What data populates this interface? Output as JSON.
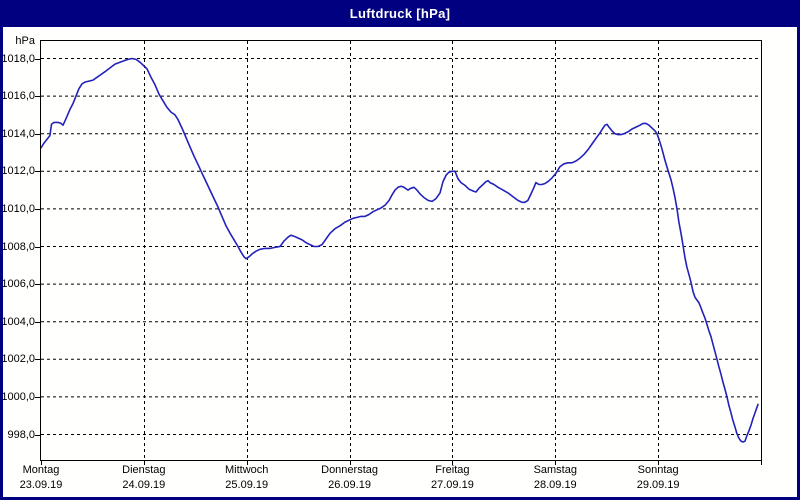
{
  "title_bar": {
    "title": "Luftdruck [hPa]",
    "bg_color": "#000080",
    "text_color": "#ffffff"
  },
  "chart_data": {
    "type": "line",
    "title": "Luftdruck [hPa]",
    "ylabel": "hPa",
    "xlabel": "",
    "grid": "dashed",
    "legend": "none",
    "line_color": "#2222bb",
    "ylim": [
      996.7,
      1019.0
    ],
    "y_tick_values": [
      1018,
      1016,
      1014,
      1012,
      1010,
      1008,
      1006,
      1004,
      1002,
      1000,
      998
    ],
    "y_tick_labels": [
      "1018,0",
      "1016,0",
      "1014,0",
      "1012,0",
      "1010,0",
      "1008,0",
      "1006,0",
      "1004,0",
      "1002,0",
      "1000,0",
      "998,0"
    ],
    "x_days": [
      {
        "day": "Montag",
        "date": "23.09.19"
      },
      {
        "day": "Dienstag",
        "date": "24.09.19"
      },
      {
        "day": "Mittwoch",
        "date": "25.09.19"
      },
      {
        "day": "Donnerstag",
        "date": "26.09.19"
      },
      {
        "day": "Freitag",
        "date": "27.09.19"
      },
      {
        "day": "Samstag",
        "date": "28.09.19"
      },
      {
        "day": "Sonntag",
        "date": "29.09.19"
      }
    ],
    "series": [
      {
        "name": "Luftdruck",
        "unit": "hPa",
        "x_unit": "days_since_monday_2019-09-23",
        "points": [
          [
            0.0,
            1013.25
          ],
          [
            0.029,
            1013.5
          ],
          [
            0.058,
            1013.7
          ],
          [
            0.087,
            1013.9
          ],
          [
            0.102,
            1014.5
          ],
          [
            0.126,
            1014.6
          ],
          [
            0.165,
            1014.6
          ],
          [
            0.194,
            1014.55
          ],
          [
            0.214,
            1014.45
          ],
          [
            0.243,
            1014.8
          ],
          [
            0.282,
            1015.3
          ],
          [
            0.311,
            1015.6
          ],
          [
            0.34,
            1016.0
          ],
          [
            0.369,
            1016.4
          ],
          [
            0.399,
            1016.65
          ],
          [
            0.428,
            1016.75
          ],
          [
            0.467,
            1016.8
          ],
          [
            0.506,
            1016.85
          ],
          [
            0.544,
            1017.0
          ],
          [
            0.583,
            1017.15
          ],
          [
            0.622,
            1017.3
          ],
          [
            0.671,
            1017.5
          ],
          [
            0.719,
            1017.7
          ],
          [
            0.768,
            1017.8
          ],
          [
            0.817,
            1017.9
          ],
          [
            0.846,
            1017.95
          ],
          [
            0.885,
            1018.0
          ],
          [
            0.924,
            1017.95
          ],
          [
            0.963,
            1017.8
          ],
          [
            0.992,
            1017.65
          ],
          [
            1.031,
            1017.45
          ],
          [
            1.069,
            1017.0
          ],
          [
            1.108,
            1016.6
          ],
          [
            1.147,
            1016.1
          ],
          [
            1.186,
            1015.75
          ],
          [
            1.225,
            1015.4
          ],
          [
            1.264,
            1015.15
          ],
          [
            1.303,
            1015.0
          ],
          [
            1.332,
            1014.75
          ],
          [
            1.371,
            1014.3
          ],
          [
            1.41,
            1013.8
          ],
          [
            1.449,
            1013.3
          ],
          [
            1.488,
            1012.8
          ],
          [
            1.527,
            1012.35
          ],
          [
            1.565,
            1011.9
          ],
          [
            1.604,
            1011.45
          ],
          [
            1.643,
            1011.0
          ],
          [
            1.682,
            1010.55
          ],
          [
            1.721,
            1010.1
          ],
          [
            1.76,
            1009.6
          ],
          [
            1.799,
            1009.1
          ],
          [
            1.838,
            1008.7
          ],
          [
            1.877,
            1008.35
          ],
          [
            1.915,
            1008.0
          ],
          [
            1.944,
            1007.7
          ],
          [
            1.974,
            1007.45
          ],
          [
            1.993,
            1007.35
          ],
          [
            2.022,
            1007.45
          ],
          [
            2.051,
            1007.6
          ],
          [
            2.09,
            1007.75
          ],
          [
            2.129,
            1007.85
          ],
          [
            2.178,
            1007.9
          ],
          [
            2.227,
            1007.9
          ],
          [
            2.275,
            1007.95
          ],
          [
            2.324,
            1008.0
          ],
          [
            2.363,
            1008.3
          ],
          [
            2.402,
            1008.5
          ],
          [
            2.431,
            1008.6
          ],
          [
            2.46,
            1008.55
          ],
          [
            2.499,
            1008.45
          ],
          [
            2.538,
            1008.35
          ],
          [
            2.577,
            1008.2
          ],
          [
            2.615,
            1008.1
          ],
          [
            2.654,
            1008.0
          ],
          [
            2.693,
            1008.0
          ],
          [
            2.732,
            1008.1
          ],
          [
            2.771,
            1008.4
          ],
          [
            2.81,
            1008.7
          ],
          [
            2.859,
            1008.95
          ],
          [
            2.907,
            1009.1
          ],
          [
            2.956,
            1009.3
          ],
          [
            2.995,
            1009.4
          ],
          [
            3.034,
            1009.5
          ],
          [
            3.073,
            1009.55
          ],
          [
            3.111,
            1009.6
          ],
          [
            3.15,
            1009.6
          ],
          [
            3.189,
            1009.7
          ],
          [
            3.228,
            1009.85
          ],
          [
            3.267,
            1009.95
          ],
          [
            3.306,
            1010.05
          ],
          [
            3.345,
            1010.2
          ],
          [
            3.384,
            1010.45
          ],
          [
            3.413,
            1010.75
          ],
          [
            3.442,
            1011.0
          ],
          [
            3.471,
            1011.15
          ],
          [
            3.5,
            1011.2
          ],
          [
            3.529,
            1011.15
          ],
          [
            3.568,
            1011.0
          ],
          [
            3.597,
            1011.1
          ],
          [
            3.626,
            1011.15
          ],
          [
            3.656,
            1011.0
          ],
          [
            3.685,
            1010.8
          ],
          [
            3.724,
            1010.6
          ],
          [
            3.763,
            1010.45
          ],
          [
            3.802,
            1010.4
          ],
          [
            3.84,
            1010.55
          ],
          [
            3.879,
            1010.85
          ],
          [
            3.908,
            1011.45
          ],
          [
            3.938,
            1011.8
          ],
          [
            3.967,
            1011.95
          ],
          [
            3.996,
            1012.0
          ],
          [
            4.025,
            1012.0
          ],
          [
            4.054,
            1011.6
          ],
          [
            4.083,
            1011.4
          ],
          [
            4.122,
            1011.25
          ],
          [
            4.161,
            1011.05
          ],
          [
            4.2,
            1010.95
          ],
          [
            4.229,
            1010.9
          ],
          [
            4.258,
            1011.1
          ],
          [
            4.297,
            1011.3
          ],
          [
            4.326,
            1011.45
          ],
          [
            4.346,
            1011.5
          ],
          [
            4.365,
            1011.4
          ],
          [
            4.404,
            1011.3
          ],
          [
            4.443,
            1011.15
          ],
          [
            4.492,
            1011.0
          ],
          [
            4.54,
            1010.85
          ],
          [
            4.589,
            1010.65
          ],
          [
            4.637,
            1010.45
          ],
          [
            4.676,
            1010.35
          ],
          [
            4.705,
            1010.35
          ],
          [
            4.734,
            1010.45
          ],
          [
            4.764,
            1010.8
          ],
          [
            4.793,
            1011.15
          ],
          [
            4.812,
            1011.4
          ],
          [
            4.841,
            1011.3
          ],
          [
            4.87,
            1011.3
          ],
          [
            4.9,
            1011.35
          ],
          [
            4.929,
            1011.45
          ],
          [
            4.968,
            1011.65
          ],
          [
            5.007,
            1011.9
          ],
          [
            5.046,
            1012.25
          ],
          [
            5.085,
            1012.4
          ],
          [
            5.124,
            1012.45
          ],
          [
            5.162,
            1012.45
          ],
          [
            5.201,
            1012.55
          ],
          [
            5.24,
            1012.7
          ],
          [
            5.279,
            1012.9
          ],
          [
            5.318,
            1013.15
          ],
          [
            5.357,
            1013.45
          ],
          [
            5.396,
            1013.75
          ],
          [
            5.435,
            1014.05
          ],
          [
            5.464,
            1014.3
          ],
          [
            5.483,
            1014.45
          ],
          [
            5.503,
            1014.5
          ],
          [
            5.522,
            1014.35
          ],
          [
            5.551,
            1014.15
          ],
          [
            5.58,
            1014.0
          ],
          [
            5.609,
            1013.95
          ],
          [
            5.639,
            1013.95
          ],
          [
            5.668,
            1014.0
          ],
          [
            5.707,
            1014.1
          ],
          [
            5.746,
            1014.25
          ],
          [
            5.785,
            1014.35
          ],
          [
            5.824,
            1014.45
          ],
          [
            5.853,
            1014.55
          ],
          [
            5.882,
            1014.55
          ],
          [
            5.911,
            1014.45
          ],
          [
            5.94,
            1014.3
          ],
          [
            5.969,
            1014.15
          ],
          [
            5.989,
            1014.0
          ],
          [
            6.008,
            1013.7
          ],
          [
            6.037,
            1013.2
          ],
          [
            6.066,
            1012.6
          ],
          [
            6.096,
            1012.05
          ],
          [
            6.125,
            1011.55
          ],
          [
            6.144,
            1011.1
          ],
          [
            6.164,
            1010.6
          ],
          [
            6.183,
            1010.0
          ],
          [
            6.202,
            1009.3
          ],
          [
            6.222,
            1008.7
          ],
          [
            6.241,
            1008.1
          ],
          [
            6.261,
            1007.4
          ],
          [
            6.28,
            1006.9
          ],
          [
            6.3,
            1006.5
          ],
          [
            6.319,
            1006.1
          ],
          [
            6.339,
            1005.6
          ],
          [
            6.358,
            1005.3
          ],
          [
            6.378,
            1005.15
          ],
          [
            6.397,
            1005.0
          ],
          [
            6.416,
            1004.75
          ],
          [
            6.436,
            1004.45
          ],
          [
            6.455,
            1004.2
          ],
          [
            6.475,
            1003.85
          ],
          [
            6.494,
            1003.5
          ],
          [
            6.514,
            1003.2
          ],
          [
            6.533,
            1002.8
          ],
          [
            6.553,
            1002.4
          ],
          [
            6.572,
            1002.0
          ],
          [
            6.591,
            1001.6
          ],
          [
            6.611,
            1001.2
          ],
          [
            6.63,
            1000.8
          ],
          [
            6.65,
            1000.4
          ],
          [
            6.669,
            1000.0
          ],
          [
            6.688,
            999.55
          ],
          [
            6.708,
            999.15
          ],
          [
            6.727,
            998.75
          ],
          [
            6.747,
            998.4
          ],
          [
            6.766,
            998.05
          ],
          [
            6.786,
            997.8
          ],
          [
            6.805,
            997.65
          ],
          [
            6.825,
            997.6
          ],
          [
            6.844,
            997.65
          ],
          [
            6.864,
            997.95
          ],
          [
            6.883,
            998.2
          ],
          [
            6.903,
            998.5
          ],
          [
            6.922,
            998.85
          ],
          [
            6.942,
            999.15
          ],
          [
            6.961,
            999.45
          ],
          [
            6.971,
            999.6
          ]
        ]
      }
    ]
  }
}
